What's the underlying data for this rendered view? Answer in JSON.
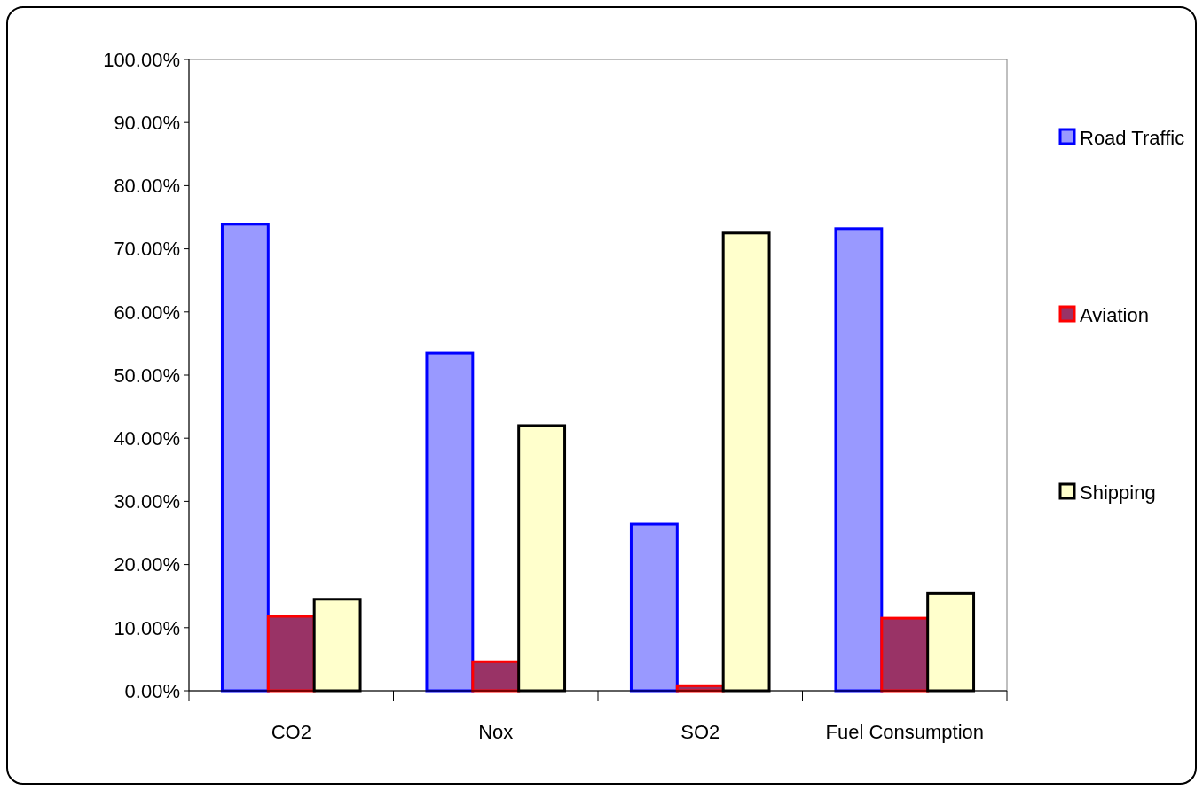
{
  "chart_data": {
    "type": "bar",
    "categories": [
      "CO2",
      "Nox",
      "SO2",
      "Fuel Consumption"
    ],
    "series": [
      {
        "name": "Road Traffic",
        "color": "#9999ff",
        "values": [
          73.9,
          53.5,
          26.4,
          73.2
        ]
      },
      {
        "name": "Aviation",
        "color": "#993366",
        "values": [
          11.8,
          4.6,
          0.8,
          11.5
        ]
      },
      {
        "name": "Shipping",
        "color": "#ffffcc",
        "values": [
          14.5,
          42.0,
          72.5,
          15.4
        ]
      }
    ],
    "ylim": [
      0,
      100
    ],
    "yticks": [
      {
        "value": 0,
        "label": "0.00%"
      },
      {
        "value": 10,
        "label": "10.00%"
      },
      {
        "value": 20,
        "label": "20.00%"
      },
      {
        "value": 30,
        "label": "30.00%"
      },
      {
        "value": 40,
        "label": "40.00%"
      },
      {
        "value": 50,
        "label": "50.00%"
      },
      {
        "value": 60,
        "label": "60.00%"
      },
      {
        "value": 70,
        "label": "70.00%"
      },
      {
        "value": 80,
        "label": "80.00%"
      },
      {
        "value": 90,
        "label": "90.00%"
      },
      {
        "value": 100,
        "label": "100.00%"
      }
    ],
    "legend": "right",
    "grid": false
  }
}
